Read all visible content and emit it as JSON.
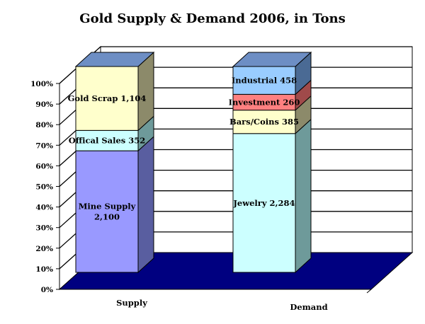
{
  "chart_data": {
    "type": "bar",
    "subtype": "stacked-100-3d",
    "title": "Gold Supply & Demand 2006, in Tons",
    "xlabel": "",
    "ylabel": "",
    "ylim": [
      0,
      100
    ],
    "yticks": [
      "0%",
      "10%",
      "20%",
      "30%",
      "40%",
      "50%",
      "60%",
      "70%",
      "80%",
      "90%",
      "100%"
    ],
    "gridlines": true,
    "categories": [
      "Supply",
      "Demand"
    ],
    "stacks": [
      {
        "category": "Supply",
        "segments": [
          {
            "name": "Mine Supply",
            "value": 2100,
            "label_lines": [
              "Mine Supply",
              "2,100"
            ],
            "color": "#9999ff",
            "side": "#595ea0",
            "top": "#b8bcff"
          },
          {
            "name": "Offical Sales",
            "value": 352,
            "label_lines": [
              "Offical Sales  352"
            ],
            "color": "#ccffff",
            "side": "#6e9a9a",
            "top": "#e0ffff"
          },
          {
            "name": "Gold Scrap",
            "value": 1104,
            "label_lines": [
              "Gold Scrap 1,104"
            ],
            "color": "#ffffcc",
            "side": "#8c8a6a",
            "top": "#6d8ec4"
          }
        ]
      },
      {
        "category": "Demand",
        "segments": [
          {
            "name": "Jewelry",
            "value": 2284,
            "label_lines": [
              "Jewelry 2,284"
            ],
            "color": "#ccffff",
            "side": "#6e9a9a",
            "top": "#e0ffff"
          },
          {
            "name": "Bars/Coins",
            "value": 385,
            "label_lines": [
              "Bars/Coins 385"
            ],
            "color": "#ffffcc",
            "side": "#8c8a6a",
            "top": "#ffffe0"
          },
          {
            "name": "Investment",
            "value": 260,
            "label_lines": [
              "Investment 260"
            ],
            "color": "#ff8080",
            "side": "#a04a4a",
            "top": "#ffa0a0"
          },
          {
            "name": "Industrial",
            "value": 458,
            "label_lines": [
              "Industrial 458"
            ],
            "color": "#99ccff",
            "side": "#4a6a94",
            "top": "#6d8ec4"
          }
        ]
      }
    ],
    "colors": {
      "floor": "#000080",
      "grid": "#000000",
      "background": "#ffffff"
    }
  }
}
